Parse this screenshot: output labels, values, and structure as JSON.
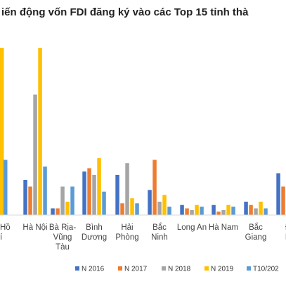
{
  "chart_data": {
    "type": "bar",
    "title": "iến động vốn FDI đăng ký vào các Top 15 tỉnh thà",
    "xlabel": "",
    "ylabel": "",
    "ylim": [
      0,
      100
    ],
    "grid": false,
    "legend_position": "bottom",
    "categories": [
      [
        "Hồ",
        "í"
      ],
      [
        "Hà Nội"
      ],
      [
        "Bà Rịa-",
        "Vũng",
        "Tàu"
      ],
      [
        "Bình",
        "Dương"
      ],
      [
        "Hải",
        "Phòng"
      ],
      [
        "Bắc",
        "Ninh"
      ],
      [
        "Long An"
      ],
      [
        "Hà Nam"
      ],
      [
        "Bắc",
        "Giang"
      ],
      [
        "Đ",
        "N"
      ]
    ],
    "series": [
      {
        "name": "N 2016",
        "color": "#4472C4",
        "values": [
          null,
          21,
          4,
          26,
          24,
          15,
          6,
          6,
          8,
          25
        ]
      },
      {
        "name": "N 2017",
        "color": "#ED7D31",
        "values": [
          null,
          17,
          4,
          28,
          7,
          33,
          4,
          2,
          6,
          17
        ]
      },
      {
        "name": "N 2018",
        "color": "#A5A5A5",
        "values": [
          null,
          72,
          17,
          24,
          31,
          8,
          3,
          3,
          4,
          null
        ]
      },
      {
        "name": "N 2019",
        "color": "#FFC000",
        "values": [
          null,
          100,
          8,
          34,
          10,
          12,
          6,
          6,
          8,
          null
        ]
      },
      {
        "name": "T10/202",
        "color": "#5B9BD5",
        "values": [
          null,
          29,
          17,
          14,
          7,
          5,
          5,
          5,
          4,
          null
        ]
      }
    ],
    "partial_bars": [
      {
        "category_index": 0,
        "series": "N 2019",
        "value": 100
      },
      {
        "category_index": 0,
        "series": "T10/202",
        "value": 33
      }
    ]
  }
}
